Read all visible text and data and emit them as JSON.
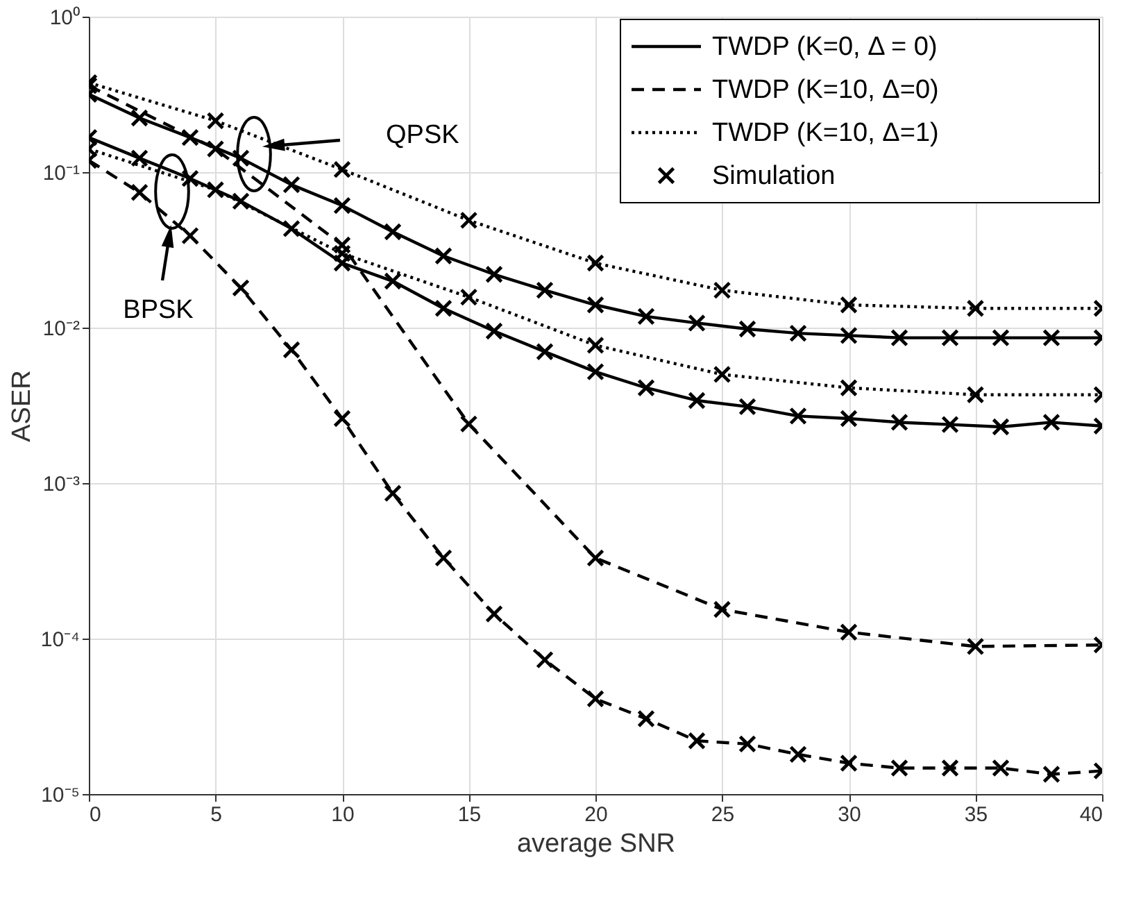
{
  "chart_data": {
    "type": "line",
    "xlabel": "average SNR",
    "ylabel": "ASER",
    "log": "y",
    "grid": true,
    "legend": "top right",
    "xlim": [
      0,
      40
    ],
    "xticks": [
      0,
      5,
      10,
      15,
      20,
      25,
      30,
      35,
      40
    ],
    "ylim": [
      1e-05,
      1
    ],
    "yticks": [
      {
        "value": 1e-05,
        "label": "10⁻⁵"
      },
      {
        "value": 0.0001,
        "label": "10⁻⁴"
      },
      {
        "value": 0.001,
        "label": "10⁻³"
      },
      {
        "value": 0.01,
        "label": "10⁻²"
      },
      {
        "value": 0.1,
        "label": "10⁻¹"
      },
      {
        "value": 1,
        "label": "10⁰"
      }
    ],
    "series": [
      {
        "name": "TWDP (K=0, Δ = 0)",
        "color": "#000000",
        "line_style": "solid",
        "marker": "none",
        "x": [
          0,
          2,
          4,
          6,
          8,
          10,
          12,
          14,
          16,
          18,
          20,
          22,
          24,
          26,
          28,
          30,
          32,
          34,
          36,
          38,
          40
        ],
        "values": [
          0.317,
          0.223,
          0.167,
          0.123,
          0.083,
          0.061,
          0.0413,
          0.0289,
          0.022,
          0.0174,
          0.014,
          0.0118,
          0.0107,
          0.0098,
          0.0092,
          0.0089,
          0.0086,
          0.0086,
          0.0086,
          0.0086,
          0.0086
        ]
      },
      {
        "name": "TWDP (K=10, Δ=0)",
        "color": "#000000",
        "line_style": "dashed",
        "marker": "none",
        "x": [
          0,
          5,
          10,
          15,
          20,
          25,
          30,
          35,
          40
        ],
        "values": [
          0.36,
          0.141,
          0.034,
          0.0024,
          0.00033,
          0.000154,
          0.00011,
          8.9e-05,
          9.1e-05
        ]
      },
      {
        "name": "TWDP (K=10, Δ=1)",
        "color": "#000000",
        "line_style": "dotted",
        "marker": "none",
        "x": [
          0,
          5,
          10,
          15,
          20,
          25,
          30,
          35,
          40
        ],
        "values": [
          0.376,
          0.214,
          0.104,
          0.049,
          0.026,
          0.0174,
          0.014,
          0.0133,
          0.0133
        ]
      },
      {
        "color": "#000000",
        "line_style": "solid",
        "marker": "none",
        "x": [
          0,
          2,
          4,
          6,
          8,
          10,
          12,
          14,
          16,
          18,
          20,
          22,
          24,
          26,
          28,
          30,
          32,
          34,
          36,
          38,
          40
        ],
        "values": [
          0.167,
          0.123,
          0.091,
          0.065,
          0.0433,
          0.026,
          0.0199,
          0.0133,
          0.0095,
          0.007,
          0.0052,
          0.0041,
          0.0034,
          0.0031,
          0.0027,
          0.0026,
          0.00246,
          0.00238,
          0.0023,
          0.00246,
          0.00233
        ]
      },
      {
        "color": "#000000",
        "line_style": "dashed",
        "marker": "none",
        "x": [
          0,
          2,
          4,
          6,
          8,
          10,
          12,
          14,
          16,
          18,
          20,
          22,
          24,
          26,
          28,
          30,
          32,
          34,
          36,
          38,
          40
        ],
        "values": [
          0.119,
          0.074,
          0.039,
          0.018,
          0.0072,
          0.0026,
          0.00086,
          0.00033,
          0.000144,
          7.3e-05,
          4.1e-05,
          3.05e-05,
          2.2e-05,
          2.1e-05,
          1.8e-05,
          1.58e-05,
          1.47e-05,
          1.47e-05,
          1.47e-05,
          1.34e-05,
          1.41e-05
        ]
      },
      {
        "color": "#000000",
        "line_style": "dotted",
        "marker": "none",
        "x": [
          0,
          5,
          10,
          15,
          20,
          25,
          30,
          35,
          40
        ],
        "values": [
          0.141,
          0.077,
          0.03,
          0.0157,
          0.0077,
          0.005,
          0.0041,
          0.0037,
          0.0037
        ]
      },
      {
        "name": "Simulation",
        "type": "scatter",
        "color": "#000000",
        "marker": "cross",
        "x": [
          0,
          2,
          4,
          6,
          8,
          10,
          12,
          14,
          16,
          18,
          20,
          22,
          24,
          26,
          28,
          30,
          32,
          34,
          36,
          38,
          40,
          0,
          5,
          10,
          15,
          20,
          25,
          30,
          35,
          40,
          0,
          5,
          10,
          15,
          20,
          25,
          30,
          35,
          40,
          0,
          2,
          4,
          6,
          8,
          10,
          12,
          14,
          16,
          18,
          20,
          22,
          24,
          26,
          28,
          30,
          32,
          34,
          36,
          38,
          40,
          0,
          2,
          4,
          6,
          8,
          10,
          12,
          14,
          16,
          18,
          20,
          22,
          24,
          26,
          28,
          30,
          32,
          34,
          36,
          38,
          40,
          0,
          5,
          10,
          15,
          20,
          25,
          30,
          35,
          40
        ],
        "values": [
          0.317,
          0.223,
          0.167,
          0.123,
          0.083,
          0.061,
          0.0413,
          0.0289,
          0.022,
          0.0174,
          0.014,
          0.0118,
          0.0107,
          0.0098,
          0.0092,
          0.0089,
          0.0086,
          0.0086,
          0.0086,
          0.0086,
          0.0086,
          0.36,
          0.141,
          0.034,
          0.0024,
          0.00033,
          0.000154,
          0.00011,
          8.9e-05,
          9.1e-05,
          0.376,
          0.214,
          0.104,
          0.049,
          0.026,
          0.0174,
          0.014,
          0.0133,
          0.0133,
          0.167,
          0.123,
          0.091,
          0.065,
          0.0433,
          0.026,
          0.0199,
          0.0133,
          0.0095,
          0.007,
          0.0052,
          0.0041,
          0.0034,
          0.0031,
          0.0027,
          0.0026,
          0.00246,
          0.00238,
          0.0023,
          0.00246,
          0.00233,
          0.119,
          0.074,
          0.039,
          0.018,
          0.0072,
          0.0026,
          0.00086,
          0.00033,
          0.000144,
          7.3e-05,
          4.1e-05,
          3.05e-05,
          2.2e-05,
          2.1e-05,
          1.8e-05,
          1.58e-05,
          1.47e-05,
          1.47e-05,
          1.47e-05,
          1.34e-05,
          1.41e-05,
          0.141,
          0.077,
          0.03,
          0.0157,
          0.0077,
          0.005,
          0.0041,
          0.0037,
          0.0037
        ]
      }
    ],
    "annotations": [
      "QPSK",
      "BPSK"
    ]
  }
}
